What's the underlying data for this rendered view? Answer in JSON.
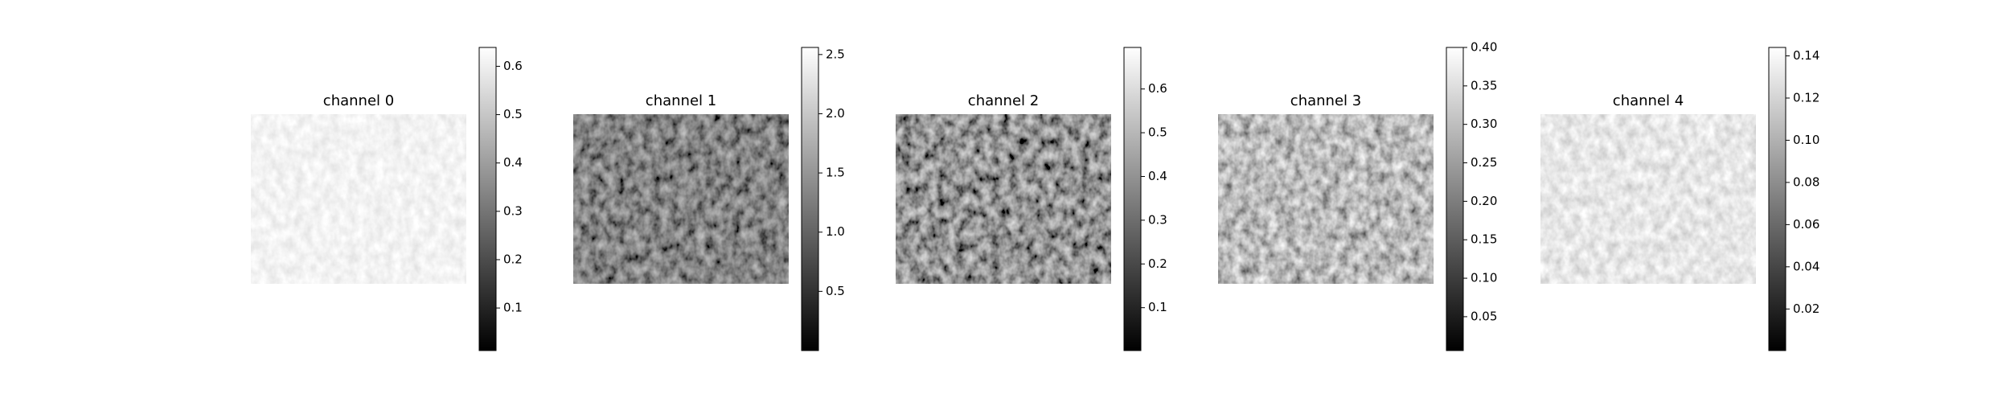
{
  "chart_data": [
    {
      "type": "image",
      "title": "channel 0",
      "colormap": [
        "#000000",
        "#ffffff"
      ],
      "ylim": [
        0.012,
        0.639
      ],
      "yticks": [
        0.1,
        0.2,
        0.3,
        0.4,
        0.5,
        0.6
      ]
    },
    {
      "type": "image",
      "title": "channel 1",
      "colormap": [
        "#000000",
        "#ffffff"
      ],
      "ylim": [
        0,
        2.56
      ],
      "yticks": [
        0.5,
        {
          "value": 1.0,
          "label": "1.0"
        },
        1.5,
        {
          "value": 2.0,
          "label": "2.0"
        },
        2.5
      ]
    },
    {
      "type": "image",
      "title": "channel 2",
      "colormap": [
        "#000000",
        "#ffffff"
      ],
      "ylim": [
        0.002,
        0.695
      ],
      "yticks": [
        0.1,
        0.2,
        0.3,
        0.4,
        0.5,
        0.6
      ]
    },
    {
      "type": "image",
      "title": "channel 3",
      "colormap": [
        "#000000",
        "#ffffff"
      ],
      "ylim": [
        0.006,
        0.4
      ],
      "yticks": [
        0.05,
        {
          "value": 0.1,
          "label": "0.10"
        },
        0.15,
        {
          "value": 0.2,
          "label": "0.20"
        },
        0.25,
        {
          "value": 0.3,
          "label": "0.30"
        },
        0.35,
        {
          "value": 0.4,
          "label": "0.40"
        }
      ]
    },
    {
      "type": "image",
      "title": "channel 4",
      "colormap": [
        "#000000",
        "#ffffff"
      ],
      "ylim": [
        0.0003,
        0.144
      ],
      "yticks": [
        0.02,
        0.04,
        0.06,
        0.08,
        {
          "value": 0.1,
          "label": "0.10"
        },
        0.12,
        0.14
      ]
    }
  ]
}
